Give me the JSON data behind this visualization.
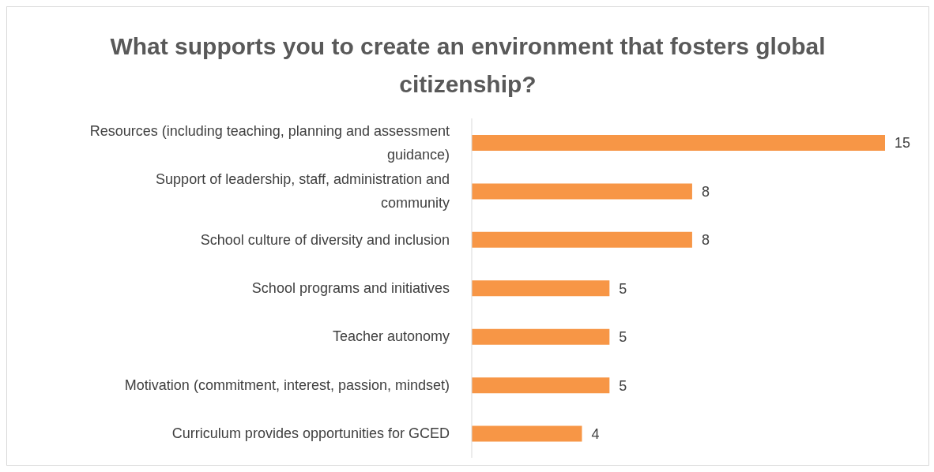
{
  "chart_data": {
    "type": "bar",
    "orientation": "horizontal",
    "title": "What supports you to create an environment that fosters global citizenship?",
    "categories": [
      "Resources (including teaching, planning and assessment guidance)",
      "Support of leadership, staff, administration and community",
      "School culture of diversity and inclusion",
      "School programs and initiatives",
      "Teacher autonomy",
      "Motivation (commitment, interest, passion, mindset)",
      "Curriculum provides opportunities for GCED"
    ],
    "values": [
      15,
      8,
      8,
      5,
      5,
      5,
      4
    ],
    "color": "#f79646",
    "data_labels": true
  }
}
